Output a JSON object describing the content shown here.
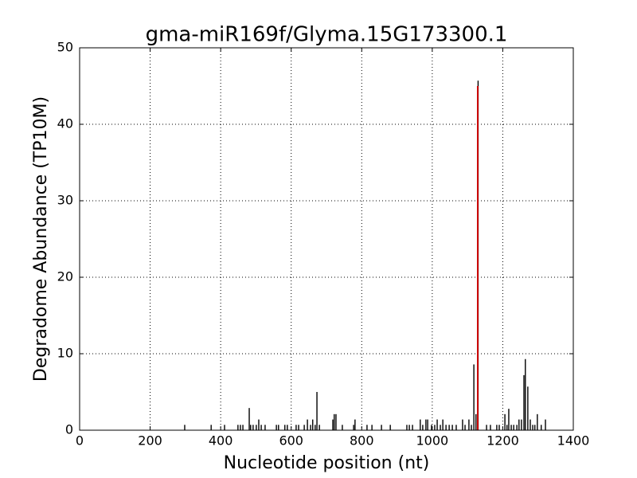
{
  "chart_data": {
    "type": "bar",
    "title": "gma-miR169f/Glyma.15G173300.1",
    "x_label": "Nucleotide position (nt)",
    "y_label": "Degradome Abundance (TP10M)",
    "xlim": [
      0,
      1400
    ],
    "ylim": [
      0,
      50
    ],
    "xticks": [
      0,
      200,
      400,
      600,
      800,
      1000,
      1200,
      1400
    ],
    "yticks": [
      0,
      10,
      20,
      30,
      40,
      50
    ],
    "grid": true,
    "series": [
      {
        "color": "#000000",
        "x": [
          298,
          373,
          411,
          449,
          456,
          463,
          481,
          485,
          492,
          501,
          508,
          515,
          526,
          558,
          564,
          582,
          589,
          614,
          621,
          637,
          646,
          655,
          661,
          668,
          673,
          680,
          718,
          722,
          727,
          745,
          777,
          781,
          815,
          829,
          856,
          881,
          928,
          935,
          944,
          966,
          973,
          982,
          987,
          998,
          1007,
          1014,
          1023,
          1030,
          1039,
          1048,
          1057,
          1068,
          1086,
          1093,
          1104,
          1111,
          1118,
          1124,
          1130,
          1154,
          1165,
          1183,
          1190,
          1206,
          1212,
          1217,
          1224,
          1231,
          1240,
          1246,
          1253,
          1260,
          1264,
          1271,
          1278,
          1285,
          1291,
          1298,
          1309,
          1321
        ],
        "values": [
          0.7,
          0.7,
          0.7,
          0.7,
          0.7,
          0.7,
          2.9,
          0.7,
          0.7,
          0.7,
          1.4,
          0.7,
          0.7,
          0.7,
          0.7,
          0.7,
          0.7,
          0.7,
          0.7,
          0.7,
          1.4,
          0.7,
          1.4,
          0.7,
          5.0,
          0.7,
          1.4,
          2.1,
          2.1,
          0.7,
          0.7,
          1.4,
          0.7,
          0.7,
          0.7,
          0.7,
          0.7,
          0.7,
          0.7,
          1.4,
          0.7,
          1.4,
          1.4,
          0.7,
          0.7,
          1.4,
          0.7,
          1.4,
          0.7,
          0.7,
          0.7,
          0.7,
          1.4,
          0.7,
          1.4,
          0.7,
          8.6,
          2.1,
          45.7,
          0.7,
          0.7,
          0.7,
          0.7,
          2.1,
          0.7,
          2.8,
          0.7,
          0.7,
          0.7,
          1.4,
          1.4,
          7.2,
          9.3,
          5.7,
          1.4,
          0.7,
          0.7,
          2.1,
          0.7,
          1.4
        ]
      },
      {
        "color": "#cc0000",
        "x": [
          1129
        ],
        "values": [
          45
        ]
      }
    ]
  }
}
